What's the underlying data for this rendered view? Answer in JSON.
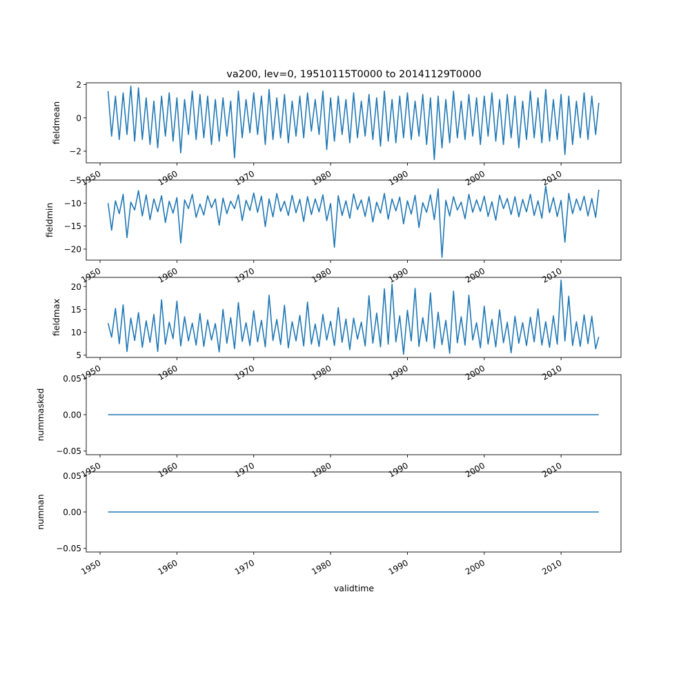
{
  "figure_title": "va200, lev=0, 19510115T0000 to 20141129T0000",
  "xlabel": "validtime",
  "x_tick_labels": [
    "1950",
    "1960",
    "1970",
    "1980",
    "1990",
    "2000",
    "2010"
  ],
  "line_color": "#1f77b4",
  "chart_data": [
    {
      "type": "line",
      "ylabel": "fieldmean",
      "xlim": [
        1948.2,
        2017.8
      ],
      "ylim": [
        -2.7,
        2.1
      ],
      "y_ticks": [
        2,
        0,
        -2
      ],
      "y_tick_labels": [
        "2",
        "0",
        "−2"
      ],
      "series": [
        {
          "x": [
            1951.04,
            1951.5,
            1952.0,
            1952.5,
            1953.0,
            1953.5,
            1954.0,
            1954.5,
            1955.0,
            1955.5,
            1956.0,
            1956.5,
            1957.0,
            1957.5,
            1958.0,
            1958.5,
            1959.0,
            1959.5,
            1960.0,
            1960.5,
            1961.0,
            1961.5,
            1962.0,
            1962.5,
            1963.0,
            1963.5,
            1964.0,
            1964.5,
            1965.0,
            1965.5,
            1966.0,
            1966.5,
            1967.0,
            1967.5,
            1968.0,
            1968.5,
            1969.0,
            1969.5,
            1970.0,
            1970.5,
            1971.0,
            1971.5,
            1972.0,
            1972.5,
            1973.0,
            1973.5,
            1974.0,
            1974.5,
            1975.0,
            1975.5,
            1976.0,
            1976.5,
            1977.0,
            1977.5,
            1978.0,
            1978.5,
            1979.0,
            1979.5,
            1980.0,
            1980.5,
            1981.0,
            1981.5,
            1982.0,
            1982.5,
            1983.0,
            1983.5,
            1984.0,
            1984.5,
            1985.0,
            1985.5,
            1986.0,
            1986.5,
            1987.0,
            1987.5,
            1988.0,
            1988.5,
            1989.0,
            1989.5,
            1990.0,
            1990.5,
            1991.0,
            1991.5,
            1992.0,
            1992.5,
            1993.0,
            1993.5,
            1994.0,
            1994.5,
            1995.0,
            1995.5,
            1996.0,
            1996.5,
            1997.0,
            1997.5,
            1998.0,
            1998.5,
            1999.0,
            1999.5,
            2000.0,
            2000.5,
            2001.0,
            2001.5,
            2002.0,
            2002.5,
            2003.0,
            2003.5,
            2004.0,
            2004.5,
            2005.0,
            2005.5,
            2006.0,
            2006.5,
            2007.0,
            2007.5,
            2008.0,
            2008.5,
            2009.0,
            2009.5,
            2010.0,
            2010.5,
            2011.0,
            2011.5,
            2012.0,
            2012.5,
            2013.0,
            2013.5,
            2014.0,
            2014.5,
            2014.91
          ],
          "y": [
            1.6,
            -1.1,
            1.3,
            -1.3,
            1.5,
            -1.0,
            1.9,
            -1.4,
            1.8,
            -1.3,
            1.2,
            -1.6,
            1.0,
            -1.8,
            1.3,
            -1.1,
            1.5,
            -1.4,
            1.2,
            -2.1,
            1.1,
            -1.0,
            1.6,
            -1.3,
            1.4,
            -1.2,
            1.3,
            -1.6,
            1.1,
            -1.4,
            1.2,
            -1.1,
            1.0,
            -2.4,
            1.6,
            -1.2,
            1.1,
            -0.9,
            1.5,
            -1.0,
            1.3,
            -1.6,
            1.7,
            -1.3,
            1.2,
            -1.2,
            1.4,
            -1.5,
            1.0,
            -1.1,
            1.3,
            -1.2,
            1.5,
            -0.8,
            1.1,
            -1.0,
            1.6,
            -1.9,
            1.2,
            -1.4,
            1.3,
            -1.0,
            1.1,
            -1.5,
            1.5,
            -1.2,
            1.0,
            -1.1,
            1.4,
            -1.3,
            1.2,
            -1.7,
            1.6,
            -1.4,
            1.1,
            -1.5,
            1.3,
            -1.2,
            1.5,
            -1.3,
            1.0,
            -1.1,
            1.4,
            -1.6,
            1.2,
            -2.5,
            1.3,
            -1.8,
            1.1,
            -1.5,
            1.6,
            -1.2,
            1.0,
            -1.3,
            1.4,
            -1.1,
            1.2,
            -1.6,
            1.3,
            -1.1,
            1.5,
            -1.4,
            1.1,
            -1.6,
            1.4,
            -1.2,
            1.3,
            -1.8,
            1.0,
            -1.3,
            1.6,
            -1.2,
            1.2,
            -1.5,
            1.7,
            -1.4,
            1.1,
            -1.3,
            1.4,
            -2.2,
            1.3,
            -1.6,
            1.0,
            -1.2,
            1.5,
            -1.3,
            1.3,
            -1.0,
            0.9
          ]
        }
      ]
    },
    {
      "type": "line",
      "ylabel": "fieldmin",
      "xlim": [
        1948.2,
        2017.8
      ],
      "ylim": [
        -22.4,
        -5.0
      ],
      "y_ticks": [
        -5,
        -10,
        -15,
        -20
      ],
      "y_tick_labels": [
        "−5",
        "−10",
        "−15",
        "−20"
      ],
      "series": [
        {
          "x": [
            1951.04,
            1951.5,
            1952.0,
            1952.5,
            1953.0,
            1953.5,
            1954.0,
            1954.5,
            1955.0,
            1955.5,
            1956.0,
            1956.5,
            1957.0,
            1957.5,
            1958.0,
            1958.5,
            1959.0,
            1959.5,
            1960.0,
            1960.5,
            1961.0,
            1961.5,
            1962.0,
            1962.5,
            1963.0,
            1963.5,
            1964.0,
            1964.5,
            1965.0,
            1965.5,
            1966.0,
            1966.5,
            1967.0,
            1967.5,
            1968.0,
            1968.5,
            1969.0,
            1969.5,
            1970.0,
            1970.5,
            1971.0,
            1971.5,
            1972.0,
            1972.5,
            1973.0,
            1973.5,
            1974.0,
            1974.5,
            1975.0,
            1975.5,
            1976.0,
            1976.5,
            1977.0,
            1977.5,
            1978.0,
            1978.5,
            1979.0,
            1979.5,
            1980.0,
            1980.5,
            1981.0,
            1981.5,
            1982.0,
            1982.5,
            1983.0,
            1983.5,
            1984.0,
            1984.5,
            1985.0,
            1985.5,
            1986.0,
            1986.5,
            1987.0,
            1987.5,
            1988.0,
            1988.5,
            1989.0,
            1989.5,
            1990.0,
            1990.5,
            1991.0,
            1991.5,
            1992.0,
            1992.5,
            1993.0,
            1993.5,
            1994.0,
            1994.5,
            1995.0,
            1995.5,
            1996.0,
            1996.5,
            1997.0,
            1997.5,
            1998.0,
            1998.5,
            1999.0,
            1999.5,
            2000.0,
            2000.5,
            2001.0,
            2001.5,
            2002.0,
            2002.5,
            2003.0,
            2003.5,
            2004.0,
            2004.5,
            2005.0,
            2005.5,
            2006.0,
            2006.5,
            2007.0,
            2007.5,
            2008.0,
            2008.5,
            2009.0,
            2009.5,
            2010.0,
            2010.5,
            2011.0,
            2011.5,
            2012.0,
            2012.5,
            2013.0,
            2013.5,
            2014.0,
            2014.5,
            2014.91
          ],
          "y": [
            -10.0,
            -15.9,
            -9.5,
            -12.3,
            -8.1,
            -17.5,
            -9.8,
            -11.5,
            -7.3,
            -12.8,
            -8.2,
            -13.6,
            -9.1,
            -11.9,
            -8.4,
            -14.2,
            -9.6,
            -12.2,
            -8.8,
            -18.7,
            -9.3,
            -11.2,
            -8.1,
            -13.1,
            -10.2,
            -12.6,
            -8.4,
            -11.0,
            -9.1,
            -14.8,
            -8.9,
            -12.3,
            -9.6,
            -11.2,
            -8.2,
            -13.8,
            -9.4,
            -11.6,
            -7.8,
            -12.0,
            -8.5,
            -15.1,
            -9.1,
            -13.0,
            -7.9,
            -11.8,
            -9.6,
            -12.7,
            -8.3,
            -12.1,
            -9.2,
            -14.0,
            -8.6,
            -12.5,
            -9.1,
            -11.9,
            -8.2,
            -13.8,
            -10.1,
            -19.6,
            -8.4,
            -12.7,
            -9.5,
            -13.3,
            -8.0,
            -11.4,
            -9.3,
            -12.9,
            -8.6,
            -14.1,
            -9.8,
            -12.2,
            -7.9,
            -13.5,
            -9.1,
            -11.7,
            -8.7,
            -14.5,
            -9.5,
            -12.4,
            -8.3,
            -15.3,
            -9.9,
            -12.0,
            -8.2,
            -13.6,
            -6.9,
            -21.8,
            -9.4,
            -12.8,
            -8.6,
            -11.5,
            -9.8,
            -13.4,
            -8.1,
            -12.0,
            -9.3,
            -11.8,
            -8.5,
            -12.9,
            -9.7,
            -13.7,
            -8.3,
            -11.2,
            -9.0,
            -12.5,
            -8.6,
            -13.0,
            -9.2,
            -11.9,
            -8.1,
            -12.7,
            -9.5,
            -13.3,
            -6.3,
            -12.1,
            -8.8,
            -12.9,
            -9.4,
            -18.5,
            -7.9,
            -12.3,
            -9.1,
            -11.6,
            -8.5,
            -12.8,
            -9.0,
            -13.1,
            -7.1
          ]
        }
      ]
    },
    {
      "type": "line",
      "ylabel": "fieldmax",
      "xlim": [
        1948.2,
        2017.8
      ],
      "ylim": [
        4.5,
        22.0
      ],
      "y_ticks": [
        20,
        15,
        10,
        5
      ],
      "y_tick_labels": [
        "20",
        "15",
        "10",
        "5"
      ],
      "series": [
        {
          "x": [
            1951.04,
            1951.5,
            1952.0,
            1952.5,
            1953.0,
            1953.5,
            1954.0,
            1954.5,
            1955.0,
            1955.5,
            1956.0,
            1956.5,
            1957.0,
            1957.5,
            1958.0,
            1958.5,
            1959.0,
            1959.5,
            1960.0,
            1960.5,
            1961.0,
            1961.5,
            1962.0,
            1962.5,
            1963.0,
            1963.5,
            1964.0,
            1964.5,
            1965.0,
            1965.5,
            1966.0,
            1966.5,
            1967.0,
            1967.5,
            1968.0,
            1968.5,
            1969.0,
            1969.5,
            1970.0,
            1970.5,
            1971.0,
            1971.5,
            1972.0,
            1972.5,
            1973.0,
            1973.5,
            1974.0,
            1974.5,
            1975.0,
            1975.5,
            1976.0,
            1976.5,
            1977.0,
            1977.5,
            1978.0,
            1978.5,
            1979.0,
            1979.5,
            1980.0,
            1980.5,
            1981.0,
            1981.5,
            1982.0,
            1982.5,
            1983.0,
            1983.5,
            1984.0,
            1984.5,
            1985.0,
            1985.5,
            1986.0,
            1986.5,
            1987.0,
            1987.5,
            1988.0,
            1988.5,
            1989.0,
            1989.5,
            1990.0,
            1990.5,
            1991.0,
            1991.5,
            1992.0,
            1992.5,
            1993.0,
            1993.5,
            1994.0,
            1994.5,
            1995.0,
            1995.5,
            1996.0,
            1996.5,
            1997.0,
            1997.5,
            1998.0,
            1998.5,
            1999.0,
            1999.5,
            2000.0,
            2000.5,
            2001.0,
            2001.5,
            2002.0,
            2002.5,
            2003.0,
            2003.5,
            2004.0,
            2004.5,
            2005.0,
            2005.5,
            2006.0,
            2006.5,
            2007.0,
            2007.5,
            2008.0,
            2008.5,
            2009.0,
            2009.5,
            2010.0,
            2010.5,
            2011.0,
            2011.5,
            2012.0,
            2012.5,
            2013.0,
            2013.5,
            2014.0,
            2014.5,
            2014.91
          ],
          "y": [
            12.0,
            8.9,
            15.2,
            7.5,
            16.0,
            5.8,
            13.1,
            8.2,
            14.3,
            6.7,
            12.5,
            7.8,
            13.9,
            5.8,
            17.1,
            7.4,
            12.2,
            8.6,
            16.8,
            7.0,
            13.4,
            8.1,
            12.0,
            7.2,
            14.1,
            6.9,
            12.7,
            8.3,
            11.9,
            5.7,
            15.0,
            7.6,
            13.2,
            6.4,
            16.5,
            8.0,
            12.1,
            7.1,
            14.7,
            7.9,
            12.6,
            6.8,
            18.1,
            8.2,
            12.8,
            7.3,
            15.9,
            6.6,
            12.3,
            8.1,
            13.7,
            7.0,
            16.6,
            7.4,
            11.8,
            6.9,
            13.9,
            8.3,
            12.4,
            7.1,
            15.4,
            7.8,
            12.9,
            6.2,
            13.1,
            8.5,
            12.2,
            7.0,
            18.0,
            7.6,
            14.2,
            6.8,
            19.5,
            7.4,
            20.5,
            7.9,
            13.6,
            5.2,
            14.8,
            8.1,
            19.6,
            6.9,
            13.2,
            8.0,
            18.6,
            6.5,
            14.4,
            7.3,
            12.6,
            5.4,
            19.0,
            7.7,
            13.4,
            7.2,
            18.1,
            8.3,
            12.1,
            6.6,
            15.7,
            7.4,
            12.8,
            6.8,
            14.9,
            7.7,
            12.2,
            5.5,
            13.5,
            7.6,
            12.1,
            7.1,
            13.3,
            7.9,
            15.1,
            7.2,
            12.3,
            6.7,
            13.6,
            7.4,
            21.4,
            8.1,
            17.9,
            7.1,
            12.3,
            6.9,
            13.8,
            7.5,
            13.5,
            6.4,
            9.0
          ]
        }
      ]
    },
    {
      "type": "line",
      "ylabel": "nummasked",
      "xlim": [
        1948.2,
        2017.8
      ],
      "ylim": [
        -0.055,
        0.055
      ],
      "y_ticks": [
        0.05,
        0.0,
        -0.05
      ],
      "y_tick_labels": [
        "0.05",
        "0.00",
        "−0.05"
      ],
      "series": [
        {
          "x": [
            1951.04,
            2014.91
          ],
          "y": [
            0,
            0
          ]
        }
      ]
    },
    {
      "type": "line",
      "ylabel": "numnan",
      "xlim": [
        1948.2,
        2017.8
      ],
      "ylim": [
        -0.055,
        0.055
      ],
      "y_ticks": [
        0.05,
        0.0,
        -0.05
      ],
      "y_tick_labels": [
        "0.05",
        "0.00",
        "−0.05"
      ],
      "series": [
        {
          "x": [
            1951.04,
            2014.91
          ],
          "y": [
            0,
            0
          ]
        }
      ]
    }
  ]
}
